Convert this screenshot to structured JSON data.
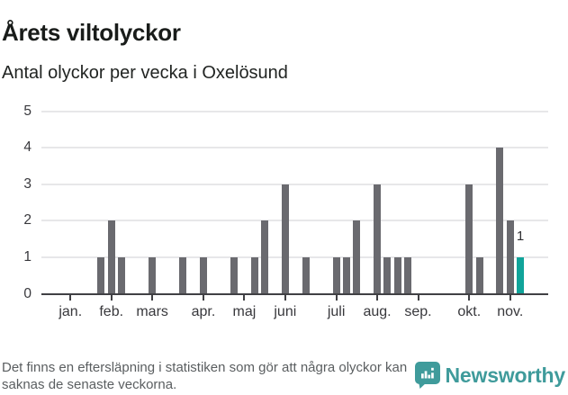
{
  "header": {
    "title": "Årets viltolyckor",
    "subtitle": "Antal olyckor per vecka i Oxelösund"
  },
  "chart_data": {
    "type": "bar",
    "title": "Årets viltolyckor",
    "subtitle": "Antal olyckor per vecka i Oxelösund",
    "x_unit": "week",
    "weeks": [
      1,
      2,
      3,
      4,
      5,
      6,
      7,
      8,
      9,
      10,
      11,
      12,
      13,
      14,
      15,
      16,
      17,
      18,
      19,
      20,
      21,
      22,
      23,
      24,
      25,
      26,
      27,
      28,
      29,
      30,
      31,
      32,
      33,
      34,
      35,
      36,
      37,
      38,
      39,
      40,
      41,
      42,
      43,
      44,
      45,
      46
    ],
    "values": [
      0,
      0,
      0,
      0,
      1,
      2,
      1,
      0,
      0,
      1,
      0,
      0,
      1,
      0,
      1,
      0,
      0,
      1,
      0,
      1,
      2,
      0,
      3,
      0,
      1,
      0,
      0,
      1,
      1,
      2,
      0,
      3,
      1,
      1,
      1,
      0,
      0,
      0,
      0,
      0,
      3,
      1,
      0,
      4,
      2,
      1
    ],
    "month_ticks": [
      {
        "label": "jan.",
        "week": 2
      },
      {
        "label": "feb.",
        "week": 6
      },
      {
        "label": "mars",
        "week": 10
      },
      {
        "label": "apr.",
        "week": 15
      },
      {
        "label": "maj",
        "week": 19
      },
      {
        "label": "juni",
        "week": 23
      },
      {
        "label": "juli",
        "week": 28
      },
      {
        "label": "aug.",
        "week": 32
      },
      {
        "label": "sep.",
        "week": 36
      },
      {
        "label": "okt.",
        "week": 41
      },
      {
        "label": "nov.",
        "week": 45
      }
    ],
    "yticks": [
      0,
      1,
      2,
      3,
      4,
      5
    ],
    "ylim": [
      0,
      5
    ],
    "grid": "horizontal",
    "legend_position": "none",
    "bar_color": "#6a6a6f",
    "highlight_color": "#10a49a",
    "highlight_week": 46,
    "annotation": {
      "week": 46,
      "text": "1"
    }
  },
  "footer": {
    "note": "Det finns en eftersläpning i statistiken som gör att några olyckor kan saknas de senaste veckorna.",
    "brand": "Newsworthy",
    "brand_color": "#3f9b9b",
    "logo_icon": "speech-bubble-bar-chart-icon"
  }
}
